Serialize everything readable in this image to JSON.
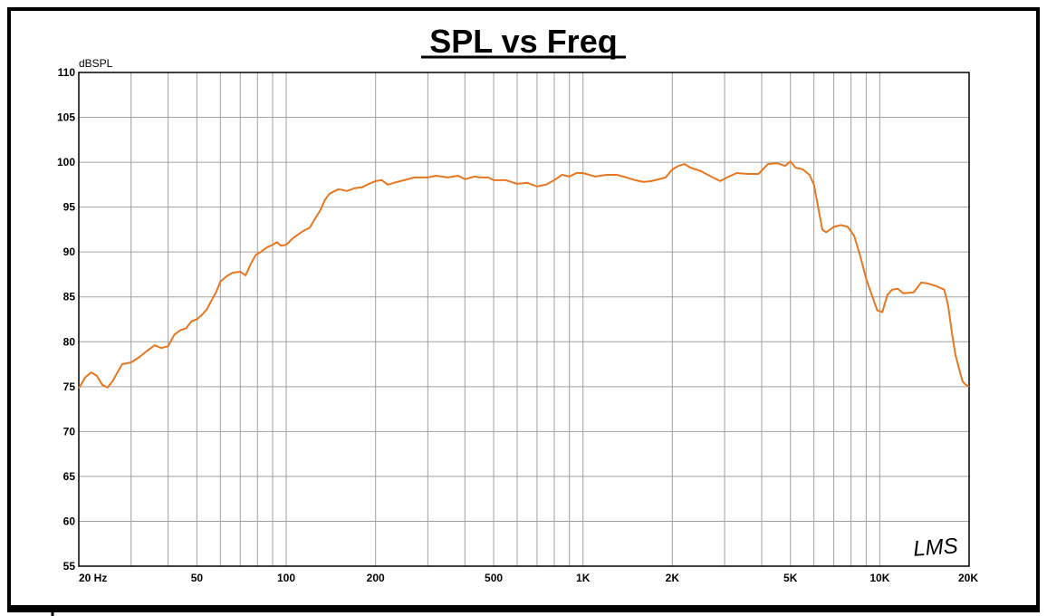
{
  "chart_data": {
    "type": "line",
    "title": "SPL vs Freq",
    "ylabel": "dBSPL",
    "xlabel": "",
    "x_scale": "log",
    "xlim": [
      20,
      20000
    ],
    "ylim": [
      55,
      110
    ],
    "y_ticks": [
      55,
      60,
      65,
      70,
      75,
      80,
      85,
      90,
      95,
      100,
      105,
      110
    ],
    "x_ticks": [
      {
        "value": 20,
        "label": "20  Hz"
      },
      {
        "value": 50,
        "label": "50"
      },
      {
        "value": 100,
        "label": "100"
      },
      {
        "value": 200,
        "label": "200"
      },
      {
        "value": 500,
        "label": "500"
      },
      {
        "value": 1000,
        "label": "1K"
      },
      {
        "value": 2000,
        "label": "2K"
      },
      {
        "value": 5000,
        "label": "5K"
      },
      {
        "value": 10000,
        "label": "10K"
      },
      {
        "value": 20000,
        "label": "20K"
      }
    ],
    "grid": true,
    "logo_text": "LMS",
    "series": [
      {
        "color": "#e87722",
        "points": [
          [
            20,
            74.8
          ],
          [
            21,
            76.0
          ],
          [
            22,
            76.6
          ],
          [
            23,
            76.2
          ],
          [
            24,
            75.2
          ],
          [
            25,
            74.9
          ],
          [
            26,
            75.6
          ],
          [
            27,
            76.6
          ],
          [
            28,
            77.5
          ],
          [
            30,
            77.7
          ],
          [
            32,
            78.3
          ],
          [
            34,
            79.0
          ],
          [
            36,
            79.6
          ],
          [
            38,
            79.3
          ],
          [
            40,
            79.5
          ],
          [
            42,
            80.8
          ],
          [
            44,
            81.3
          ],
          [
            46,
            81.5
          ],
          [
            48,
            82.3
          ],
          [
            50,
            82.5
          ],
          [
            52,
            83.0
          ],
          [
            54,
            83.6
          ],
          [
            56,
            84.6
          ],
          [
            58,
            85.5
          ],
          [
            60,
            86.7
          ],
          [
            63,
            87.3
          ],
          [
            66,
            87.7
          ],
          [
            70,
            87.8
          ],
          [
            73,
            87.4
          ],
          [
            76,
            88.7
          ],
          [
            79,
            89.7
          ],
          [
            82,
            90.0
          ],
          [
            86,
            90.5
          ],
          [
            90,
            90.8
          ],
          [
            93,
            91.1
          ],
          [
            96,
            90.7
          ],
          [
            100,
            90.8
          ],
          [
            105,
            91.5
          ],
          [
            110,
            92.0
          ],
          [
            115,
            92.4
          ],
          [
            120,
            92.7
          ],
          [
            125,
            93.7
          ],
          [
            130,
            94.6
          ],
          [
            135,
            95.8
          ],
          [
            140,
            96.5
          ],
          [
            150,
            97.0
          ],
          [
            160,
            96.8
          ],
          [
            170,
            97.1
          ],
          [
            180,
            97.2
          ],
          [
            190,
            97.6
          ],
          [
            200,
            97.9
          ],
          [
            210,
            98.0
          ],
          [
            220,
            97.5
          ],
          [
            230,
            97.7
          ],
          [
            250,
            98.0
          ],
          [
            270,
            98.3
          ],
          [
            300,
            98.3
          ],
          [
            320,
            98.5
          ],
          [
            350,
            98.3
          ],
          [
            380,
            98.5
          ],
          [
            400,
            98.1
          ],
          [
            430,
            98.4
          ],
          [
            450,
            98.3
          ],
          [
            480,
            98.3
          ],
          [
            500,
            98.0
          ],
          [
            550,
            98.0
          ],
          [
            600,
            97.6
          ],
          [
            650,
            97.7
          ],
          [
            700,
            97.3
          ],
          [
            750,
            97.5
          ],
          [
            800,
            98.0
          ],
          [
            850,
            98.6
          ],
          [
            900,
            98.4
          ],
          [
            950,
            98.8
          ],
          [
            1000,
            98.8
          ],
          [
            1100,
            98.4
          ],
          [
            1200,
            98.6
          ],
          [
            1300,
            98.6
          ],
          [
            1400,
            98.3
          ],
          [
            1500,
            98.0
          ],
          [
            1600,
            97.8
          ],
          [
            1700,
            97.9
          ],
          [
            1800,
            98.1
          ],
          [
            1900,
            98.3
          ],
          [
            2000,
            99.2
          ],
          [
            2100,
            99.6
          ],
          [
            2200,
            99.8
          ],
          [
            2300,
            99.4
          ],
          [
            2500,
            99.0
          ],
          [
            2700,
            98.4
          ],
          [
            2900,
            97.9
          ],
          [
            3100,
            98.4
          ],
          [
            3300,
            98.8
          ],
          [
            3600,
            98.7
          ],
          [
            3900,
            98.7
          ],
          [
            4200,
            99.8
          ],
          [
            4500,
            99.9
          ],
          [
            4800,
            99.6
          ],
          [
            5000,
            100.1
          ],
          [
            5200,
            99.4
          ],
          [
            5500,
            99.2
          ],
          [
            5800,
            98.6
          ],
          [
            6000,
            97.5
          ],
          [
            6200,
            95.0
          ],
          [
            6400,
            92.5
          ],
          [
            6600,
            92.2
          ],
          [
            7000,
            92.8
          ],
          [
            7400,
            93.0
          ],
          [
            7800,
            92.8
          ],
          [
            8200,
            91.8
          ],
          [
            8600,
            89.5
          ],
          [
            9000,
            87.0
          ],
          [
            9400,
            85.2
          ],
          [
            9800,
            83.5
          ],
          [
            10200,
            83.3
          ],
          [
            10600,
            85.2
          ],
          [
            11000,
            85.8
          ],
          [
            11500,
            85.9
          ],
          [
            12000,
            85.4
          ],
          [
            13000,
            85.5
          ],
          [
            13800,
            86.6
          ],
          [
            14500,
            86.5
          ],
          [
            15500,
            86.2
          ],
          [
            16500,
            85.8
          ],
          [
            17000,
            84.0
          ],
          [
            17500,
            81.0
          ],
          [
            18000,
            78.5
          ],
          [
            18500,
            77.0
          ],
          [
            19000,
            75.6
          ],
          [
            19500,
            75.2
          ],
          [
            20000,
            75.0
          ]
        ]
      }
    ]
  }
}
